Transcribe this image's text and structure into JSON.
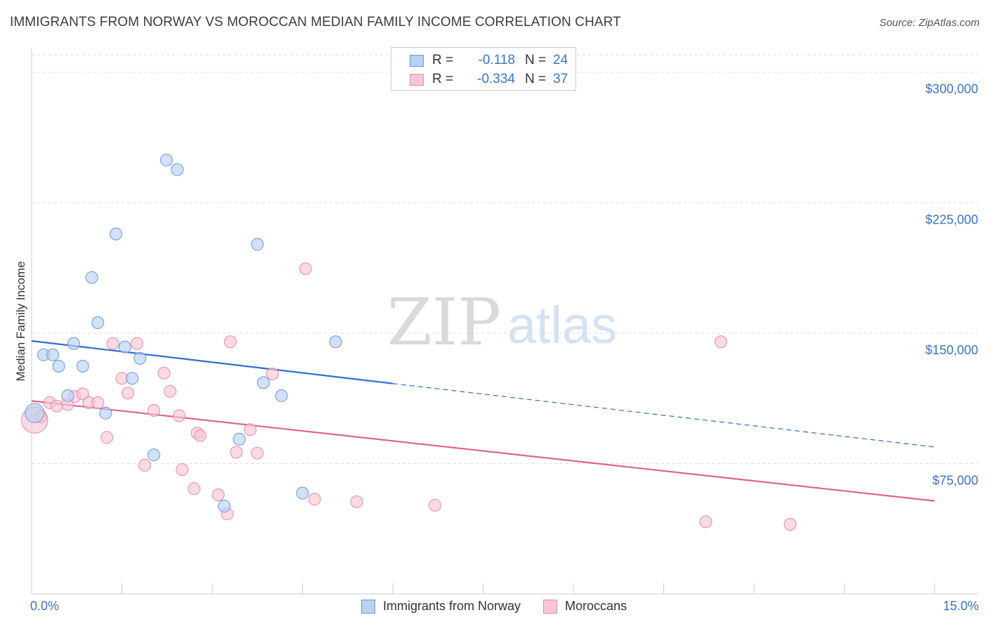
{
  "title": "IMMIGRANTS FROM NORWAY VS MOROCCAN MEDIAN FAMILY INCOME CORRELATION CHART",
  "source": "Source: ZipAtlas.com",
  "watermark": {
    "zip": "ZIP",
    "atlas": "atlas"
  },
  "legend_top": {
    "rows": [
      {
        "label": "R =",
        "r": "-0.118",
        "n_label": "N =",
        "n": "24"
      },
      {
        "label": "R =",
        "r": "-0.334",
        "n_label": "N =",
        "n": "37"
      }
    ]
  },
  "legend_bottom": [
    "Immigrants from Norway",
    "Moroccans"
  ],
  "colors": {
    "blue_fill": "#b9d1f2",
    "blue_stroke": "#6a98d6",
    "blue_line": "#2f6fd0",
    "pink_fill": "#f8c6d4",
    "pink_stroke": "#e78aa6",
    "pink_line": "#e0628f",
    "axis_text": "#3a74c4",
    "grid": "#dddddd"
  },
  "chart_data": {
    "type": "scatter",
    "title": "IMMIGRANTS FROM NORWAY VS MOROCCAN MEDIAN FAMILY INCOME CORRELATION CHART",
    "xlabel": "",
    "ylabel": "Median Family Income",
    "xlim": [
      0,
      15
    ],
    "ylim": [
      0,
      310000
    ],
    "x_tick_labels": [
      "0.0%",
      "15.0%"
    ],
    "y_ticks": [
      75000,
      150000,
      225000,
      300000
    ],
    "y_tick_labels": [
      "$75,000",
      "$150,000",
      "$225,000",
      "$300,000"
    ],
    "series": [
      {
        "name": "Immigrants from Norway",
        "r": -0.118,
        "n": 24,
        "trend": {
          "x0": 0,
          "y0": 145500,
          "x1": 6.0,
          "y1": 121000,
          "x_dash_end": 15,
          "y_dash_end": 84500
        },
        "points": [
          {
            "x": 0.05,
            "y": 104000,
            "size": 1.6
          },
          {
            "x": 0.2,
            "y": 137500
          },
          {
            "x": 0.35,
            "y": 137500
          },
          {
            "x": 0.45,
            "y": 131000
          },
          {
            "x": 0.6,
            "y": 114000
          },
          {
            "x": 0.7,
            "y": 144000
          },
          {
            "x": 0.85,
            "y": 131000
          },
          {
            "x": 1.0,
            "y": 182000
          },
          {
            "x": 1.1,
            "y": 156000
          },
          {
            "x": 1.23,
            "y": 104000
          },
          {
            "x": 1.4,
            "y": 207000
          },
          {
            "x": 1.55,
            "y": 142000
          },
          {
            "x": 1.67,
            "y": 124000
          },
          {
            "x": 1.8,
            "y": 135500
          },
          {
            "x": 2.03,
            "y": 80000
          },
          {
            "x": 2.24,
            "y": 249500
          },
          {
            "x": 2.42,
            "y": 244000
          },
          {
            "x": 3.2,
            "y": 50500
          },
          {
            "x": 3.45,
            "y": 89000
          },
          {
            "x": 3.85,
            "y": 121500
          },
          {
            "x": 3.75,
            "y": 201000
          },
          {
            "x": 4.15,
            "y": 114000
          },
          {
            "x": 4.5,
            "y": 58000
          },
          {
            "x": 5.05,
            "y": 145000
          }
        ]
      },
      {
        "name": "Moroccans",
        "r": -0.334,
        "n": 37,
        "trend": {
          "x0": 0,
          "y0": 111000,
          "x1": 15,
          "y1": 53500
        },
        "points": [
          {
            "x": 0.05,
            "y": 100000,
            "size": 2.2
          },
          {
            "x": 0.15,
            "y": 102000
          },
          {
            "x": 0.3,
            "y": 110000
          },
          {
            "x": 0.42,
            "y": 108000
          },
          {
            "x": 0.6,
            "y": 109000
          },
          {
            "x": 0.72,
            "y": 113500
          },
          {
            "x": 0.85,
            "y": 115000
          },
          {
            "x": 0.95,
            "y": 110000
          },
          {
            "x": 1.1,
            "y": 110000
          },
          {
            "x": 1.25,
            "y": 90000
          },
          {
            "x": 1.35,
            "y": 144000
          },
          {
            "x": 1.5,
            "y": 124000
          },
          {
            "x": 1.6,
            "y": 115500
          },
          {
            "x": 1.75,
            "y": 144000
          },
          {
            "x": 1.88,
            "y": 74000
          },
          {
            "x": 2.03,
            "y": 105500
          },
          {
            "x": 2.2,
            "y": 127000
          },
          {
            "x": 2.3,
            "y": 116500
          },
          {
            "x": 2.45,
            "y": 102500
          },
          {
            "x": 2.5,
            "y": 71500
          },
          {
            "x": 2.7,
            "y": 60500
          },
          {
            "x": 2.75,
            "y": 92500
          },
          {
            "x": 2.8,
            "y": 91000
          },
          {
            "x": 3.1,
            "y": 57000
          },
          {
            "x": 3.25,
            "y": 46000
          },
          {
            "x": 3.3,
            "y": 145000
          },
          {
            "x": 3.4,
            "y": 81500
          },
          {
            "x": 3.63,
            "y": 94500
          },
          {
            "x": 3.75,
            "y": 81000
          },
          {
            "x": 4.0,
            "y": 126500
          },
          {
            "x": 4.55,
            "y": 187000
          },
          {
            "x": 4.7,
            "y": 54500
          },
          {
            "x": 5.4,
            "y": 53000
          },
          {
            "x": 6.7,
            "y": 51000
          },
          {
            "x": 11.2,
            "y": 41500
          },
          {
            "x": 11.45,
            "y": 145000
          },
          {
            "x": 12.6,
            "y": 40000
          }
        ]
      }
    ]
  }
}
